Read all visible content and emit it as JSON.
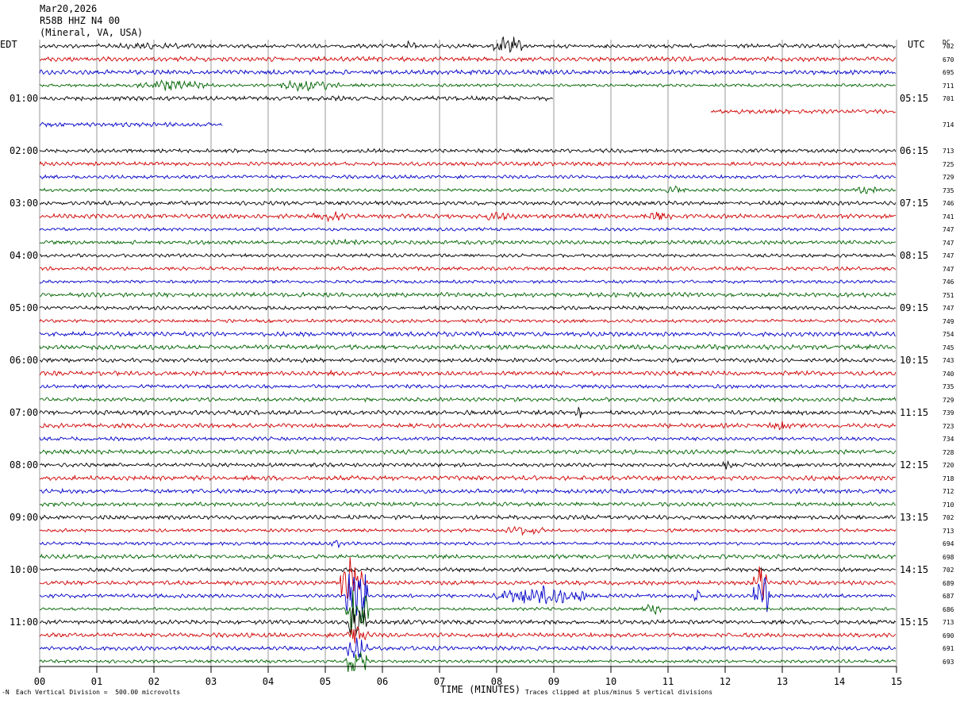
{
  "header": {
    "date": "Mar20,2026",
    "station": "R58B HHZ N4 00",
    "location": "(Mineral, VA, USA)"
  },
  "labels": {
    "left_timezone": "EDT",
    "right_timezone": "UTC",
    "dc_label": "DC",
    "xlabel": "TIME (MINUTES)",
    "scale_note": "Each Vertical Division =  500.00 microvolts",
    "clip_note": "Traces clipped at plus/minus 5 vertical divisions",
    "corner_mark": "-N"
  },
  "colors": {
    "black": "#000000",
    "red": "#d00000",
    "blue": "#0000c8",
    "green": "#006400",
    "grid": "#808080"
  },
  "chart_data": {
    "type": "line",
    "title": "R58B HHZ N4 00",
    "xlabel": "TIME (MINUTES)",
    "xlim": [
      0,
      15
    ],
    "xticks": [
      "00",
      "01",
      "02",
      "03",
      "04",
      "05",
      "06",
      "07",
      "08",
      "09",
      "10",
      "11",
      "12",
      "13",
      "14",
      "15"
    ],
    "rows": 48,
    "left_hour_labels": [
      {
        "row": 4,
        "label": "01:00"
      },
      {
        "row": 8,
        "label": "02:00"
      },
      {
        "row": 12,
        "label": "03:00"
      },
      {
        "row": 16,
        "label": "04:00"
      },
      {
        "row": 20,
        "label": "05:00"
      },
      {
        "row": 24,
        "label": "06:00"
      },
      {
        "row": 28,
        "label": "07:00"
      },
      {
        "row": 32,
        "label": "08:00"
      },
      {
        "row": 36,
        "label": "09:00"
      },
      {
        "row": 40,
        "label": "10:00"
      },
      {
        "row": 44,
        "label": "11:00"
      }
    ],
    "right_hour_labels": [
      {
        "row": 4,
        "label": "05:15"
      },
      {
        "row": 8,
        "label": "06:15"
      },
      {
        "row": 12,
        "label": "07:15"
      },
      {
        "row": 16,
        "label": "08:15"
      },
      {
        "row": 20,
        "label": "09:15"
      },
      {
        "row": 24,
        "label": "10:15"
      },
      {
        "row": 28,
        "label": "11:15"
      },
      {
        "row": 32,
        "label": "12:15"
      },
      {
        "row": 36,
        "label": "13:15"
      },
      {
        "row": 40,
        "label": "14:15"
      },
      {
        "row": 44,
        "label": "15:15"
      }
    ],
    "dc_values": [
      "702",
      "670",
      "695",
      "711",
      "701",
      "",
      "714",
      "",
      "713",
      "725",
      "729",
      "735",
      "746",
      "741",
      "747",
      "747",
      "747",
      "747",
      "746",
      "751",
      "747",
      "749",
      "754",
      "745",
      "743",
      "740",
      "735",
      "729",
      "739",
      "723",
      "734",
      "728",
      "720",
      "718",
      "712",
      "710",
      "702",
      "713",
      "694",
      "698",
      "702",
      "689",
      "687",
      "686",
      "713",
      "690",
      "691",
      "693"
    ],
    "row_colors": [
      "black",
      "red",
      "blue",
      "green"
    ],
    "gaps": [
      {
        "row": 4,
        "from": 9.0,
        "to": 15
      },
      {
        "row": 5,
        "from": 0,
        "to": 11.75
      },
      {
        "row": 6,
        "from": 3.2,
        "to": 15
      },
      {
        "row": 7,
        "from": 0,
        "to": 15
      }
    ],
    "events": [
      {
        "row": 0,
        "x": 1.0,
        "width": 2.0,
        "amp": 4
      },
      {
        "row": 0,
        "x": 6.3,
        "width": 0.3,
        "amp": 5
      },
      {
        "row": 0,
        "x": 8.0,
        "width": 0.4,
        "amp": 12
      },
      {
        "row": 3,
        "x": 1.5,
        "width": 1.5,
        "amp": 6
      },
      {
        "row": 3,
        "x": 4.2,
        "width": 1.0,
        "amp": 7
      },
      {
        "row": 11,
        "x": 11.0,
        "width": 0.3,
        "amp": 5
      },
      {
        "row": 11,
        "x": 14.3,
        "width": 0.4,
        "amp": 5
      },
      {
        "row": 13,
        "x": 4.8,
        "width": 0.6,
        "amp": 6
      },
      {
        "row": 13,
        "x": 7.6,
        "width": 0.8,
        "amp": 5
      },
      {
        "row": 13,
        "x": 10.5,
        "width": 0.6,
        "amp": 6
      },
      {
        "row": 15,
        "x": 5.0,
        "width": 0.8,
        "amp": 4
      },
      {
        "row": 25,
        "x": 5.0,
        "width": 0.5,
        "amp": 4
      },
      {
        "row": 28,
        "x": 9.4,
        "width": 0.1,
        "amp": 7
      },
      {
        "row": 29,
        "x": 12.8,
        "width": 0.3,
        "amp": 7
      },
      {
        "row": 32,
        "x": 12.0,
        "width": 0.1,
        "amp": 6
      },
      {
        "row": 37,
        "x": 8.2,
        "width": 0.6,
        "amp": 6
      },
      {
        "row": 38,
        "x": 5.15,
        "width": 0.05,
        "amp": 8
      },
      {
        "row": 41,
        "x": 5.3,
        "width": 0.3,
        "amp": 28
      },
      {
        "row": 41,
        "x": 12.55,
        "width": 0.15,
        "amp": 25
      },
      {
        "row": 42,
        "x": 5.4,
        "width": 0.3,
        "amp": 45
      },
      {
        "row": 42,
        "x": 8.0,
        "width": 1.4,
        "amp": 12
      },
      {
        "row": 42,
        "x": 9.4,
        "width": 0.15,
        "amp": 9
      },
      {
        "row": 42,
        "x": 11.45,
        "width": 0.1,
        "amp": 8
      },
      {
        "row": 42,
        "x": 12.55,
        "width": 0.2,
        "amp": 25
      },
      {
        "row": 43,
        "x": 5.4,
        "width": 0.3,
        "amp": 40
      },
      {
        "row": 43,
        "x": 10.6,
        "width": 0.3,
        "amp": 7
      },
      {
        "row": 44,
        "x": 5.4,
        "width": 0.3,
        "amp": 22
      },
      {
        "row": 45,
        "x": 5.4,
        "width": 0.3,
        "amp": 15
      },
      {
        "row": 46,
        "x": 5.4,
        "width": 0.3,
        "amp": 15
      },
      {
        "row": 47,
        "x": 5.4,
        "width": 0.3,
        "amp": 20
      }
    ]
  }
}
